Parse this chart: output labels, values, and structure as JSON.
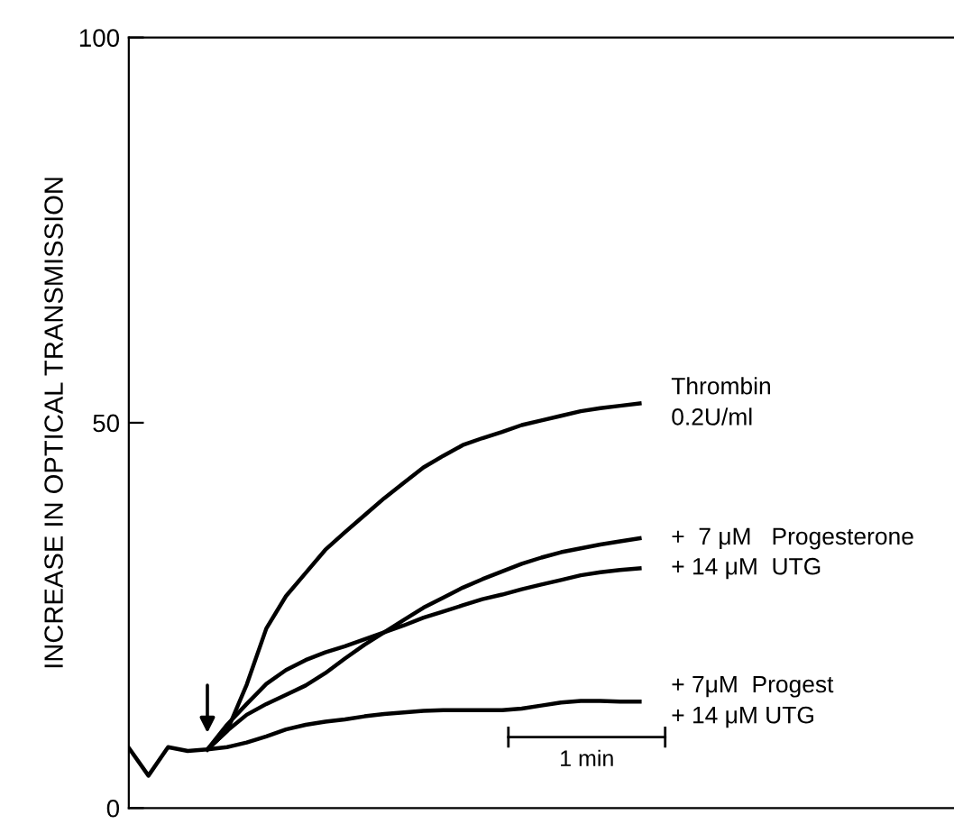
{
  "chart_data": {
    "type": "line",
    "ylabel": "INCREASE IN OPTICAL TRANSMISSION",
    "categories": [
      null,
      null,
      null,
      null,
      null,
      null,
      null,
      null,
      null,
      null,
      null,
      null,
      null,
      null,
      null,
      null,
      null,
      null,
      null,
      null,
      null,
      null,
      null,
      null,
      null,
      null,
      null,
      null,
      null,
      null,
      null,
      null,
      null,
      null,
      null,
      null,
      null,
      null,
      null,
      null,
      null,
      null,
      null
    ],
    "ylim": [
      0,
      100
    ],
    "yticks": [
      0,
      50,
      100
    ],
    "tick_labels": "y",
    "grid": false,
    "legend": false,
    "marker": "none",
    "line_style": "solid",
    "annotations": [
      "1 min"
    ],
    "series": [
      {
        "name": "Thrombin\n0.2U/ml",
        "color": "#000000",
        "values": [
          null,
          null,
          null,
          null,
          7.6,
          10.0,
          16,
          23.3,
          27.5,
          30.5,
          33.5,
          35.8,
          38.0,
          40.2,
          42.2,
          44.2,
          45.7,
          47.1,
          48.0,
          48.8,
          49.7,
          50.3,
          50.9,
          51.5,
          51.9,
          52.2,
          52.5,
          null,
          null,
          null,
          null,
          null,
          null,
          null,
          null,
          null,
          null,
          null,
          null,
          null,
          null,
          null,
          null
        ]
      },
      {
        "name": "+  7 μM   Progesterone",
        "color": "#000000",
        "values": [
          null,
          null,
          null,
          null,
          7.6,
          10.0,
          12.1,
          13.5,
          14.7,
          15.9,
          17.5,
          19.4,
          21.2,
          22.8,
          24.4,
          26.0,
          27.3,
          28.6,
          29.7,
          30.7,
          31.7,
          32.5,
          33.2,
          33.7,
          34.2,
          34.6,
          35.0,
          null,
          null,
          null,
          null,
          null,
          null,
          null,
          null,
          null,
          null,
          null,
          null,
          null,
          null,
          null,
          null
        ]
      },
      {
        "name": "+ 14 μM  UTG",
        "color": "#000000",
        "values": [
          null,
          null,
          null,
          null,
          7.6,
          10.8,
          13.5,
          16.1,
          17.9,
          19.2,
          20.2,
          21.0,
          21.9,
          22.8,
          23.7,
          24.7,
          25.5,
          26.3,
          27.1,
          27.7,
          28.4,
          29.0,
          29.6,
          30.2,
          30.6,
          30.9,
          31.1,
          null,
          null,
          null,
          null,
          null,
          null,
          null,
          null,
          null,
          null,
          null,
          null,
          null,
          null,
          null,
          null
        ]
      },
      {
        "name": "+ 7μM  Progest\n+ 14 μM UTG",
        "color": "#000000",
        "values": [
          7.8,
          4.2,
          7.9,
          7.4,
          7.6,
          7.9,
          8.5,
          9.3,
          10.2,
          10.8,
          11.2,
          11.5,
          11.9,
          12.2,
          12.4,
          12.6,
          12.7,
          12.7,
          12.7,
          12.7,
          12.9,
          13.3,
          13.7,
          13.9,
          13.9,
          13.8,
          13.8,
          null,
          null,
          null,
          null,
          null,
          null,
          null,
          null,
          null,
          null,
          null,
          null,
          null,
          null,
          null,
          null
        ]
      }
    ]
  }
}
